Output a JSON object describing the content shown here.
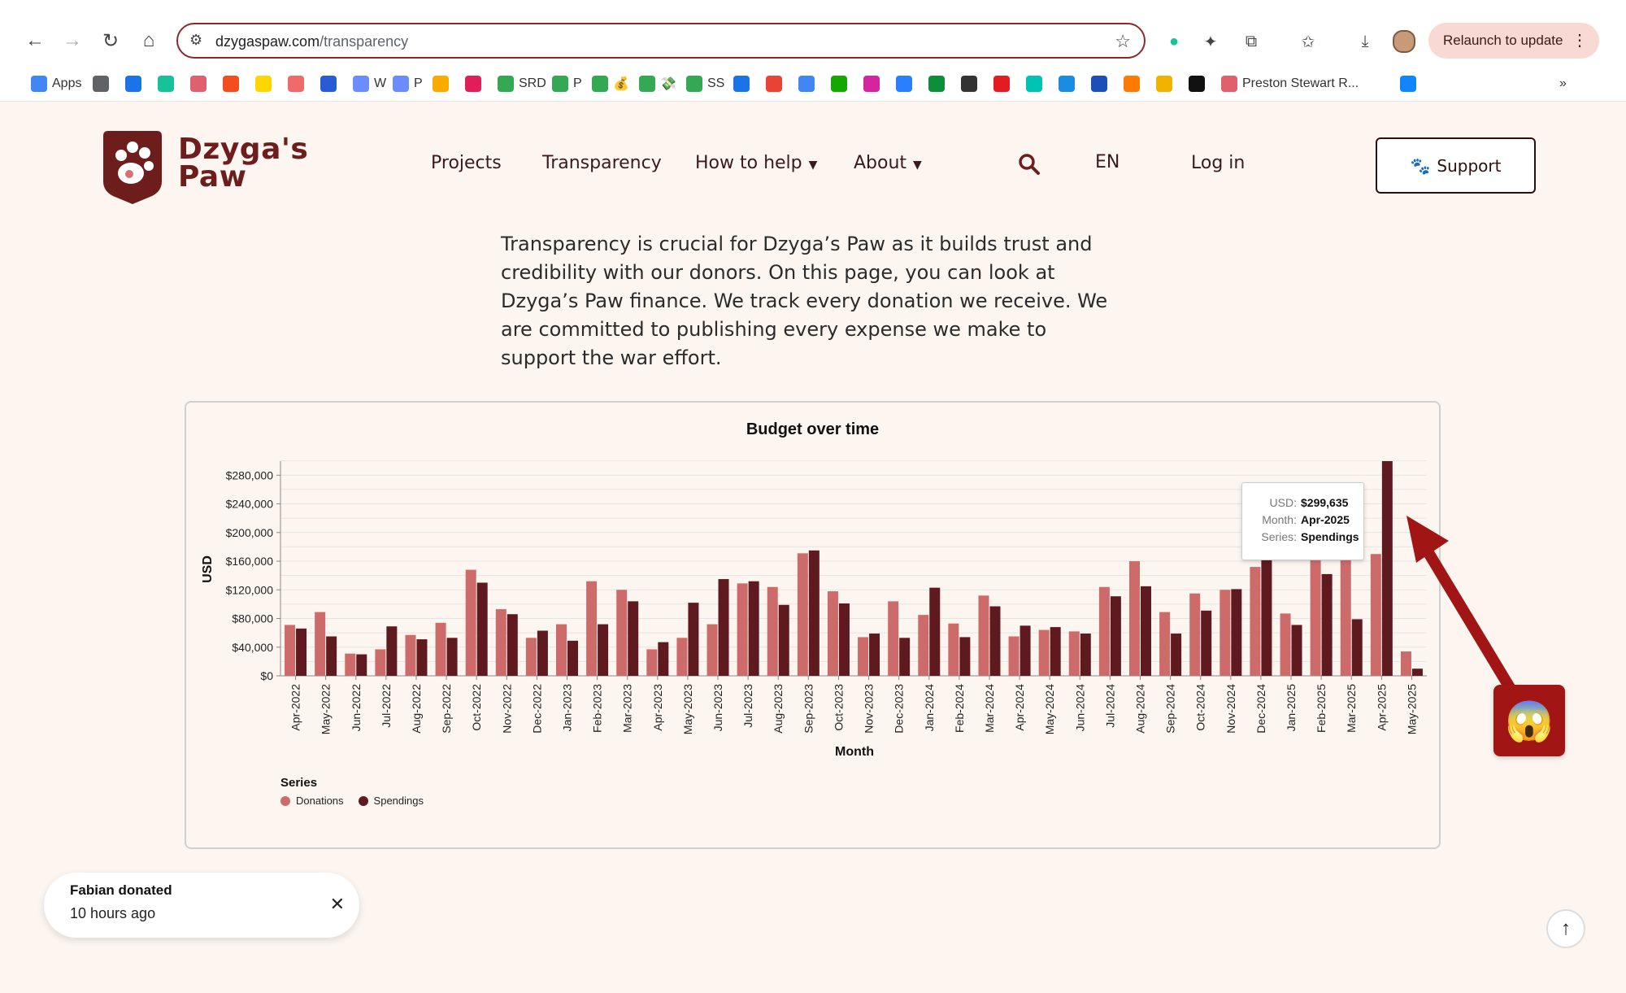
{
  "browser": {
    "url_host": "dzygaspaw.com",
    "url_path": "/transparency",
    "relaunch_label": "Relaunch to update",
    "bookmarks": [
      {
        "label": "Apps",
        "icon": "apps-grid-icon",
        "color": "#4285f4"
      },
      {
        "label": "",
        "icon": "grid-icon",
        "color": "#5f6368"
      },
      {
        "label": "",
        "icon": "calendar-icon",
        "color": "#1a73e8"
      },
      {
        "label": "",
        "icon": "grammarly-icon",
        "color": "#15c39a"
      },
      {
        "label": "",
        "icon": "paw-icon",
        "color": "#e0606e"
      },
      {
        "label": "",
        "icon": "figma-icon",
        "color": "#f24e1e"
      },
      {
        "label": "",
        "icon": "yellow-circle-icon",
        "color": "#ffd600"
      },
      {
        "label": "",
        "icon": "asana-icon",
        "color": "#f06a6a"
      },
      {
        "label": "",
        "icon": "blue-square-icon",
        "color": "#2a5bd7"
      },
      {
        "label": "W",
        "icon": "hand-icon",
        "color": "#6a8cff"
      },
      {
        "label": "P",
        "icon": "hand-icon",
        "color": "#6a8cff"
      },
      {
        "label": "",
        "icon": "analytics-icon",
        "color": "#f9ab00"
      },
      {
        "label": "",
        "icon": "slack-icon",
        "color": "#e01e5a"
      },
      {
        "label": "SRD",
        "icon": "drive-icon",
        "color": "#34a853"
      },
      {
        "label": "P",
        "icon": "drive-icon",
        "color": "#34a853"
      },
      {
        "label": "💰",
        "icon": "drive-icon",
        "color": "#34a853"
      },
      {
        "label": "💸",
        "icon": "drive-icon",
        "color": "#34a853"
      },
      {
        "label": "SS",
        "icon": "drive-icon",
        "color": "#34a853"
      },
      {
        "label": "",
        "icon": "calendar-icon",
        "color": "#1a73e8"
      },
      {
        "label": "",
        "icon": "gmail-icon",
        "color": "#ea4335"
      },
      {
        "label": "",
        "icon": "ads-icon",
        "color": "#4285f4"
      },
      {
        "label": "",
        "icon": "upwork-icon",
        "color": "#14a800"
      },
      {
        "label": "",
        "icon": "instagram-icon",
        "color": "#d6249f"
      },
      {
        "label": "",
        "icon": "puzzle-icon",
        "color": "#2a7fff"
      },
      {
        "label": "",
        "icon": "square-icon",
        "color": "#0d8f3a"
      },
      {
        "label": "",
        "icon": "globe-icon",
        "color": "#333333"
      },
      {
        "label": "",
        "icon": "red-icon",
        "color": "#e31b23"
      },
      {
        "label": "",
        "icon": "teal-icon",
        "color": "#00c4b3"
      },
      {
        "label": "",
        "icon": "hr-icon",
        "color": "#1b8ce3"
      },
      {
        "label": "",
        "icon": "ub-icon",
        "color": "#1c4fb8"
      },
      {
        "label": "",
        "icon": "multicolor-icon",
        "color": "#ff7a00"
      },
      {
        "label": "",
        "icon": "ring-icon",
        "color": "#f2b200"
      },
      {
        "label": "",
        "icon": "openai-icon",
        "color": "#111111"
      },
      {
        "label": "Preston Stewart R...",
        "icon": "paw-icon",
        "color": "#e0606e"
      },
      {
        "label": "",
        "icon": "butterfly-icon",
        "color": "#1185fe"
      }
    ]
  },
  "site": {
    "logo_line1": "Dzyga's",
    "logo_line2": "Paw",
    "nav": {
      "projects": "Projects",
      "transparency": "Transparency",
      "how_to_help": "How to help",
      "about": "About",
      "lang": "EN",
      "login": "Log in"
    },
    "support_label": "Support",
    "brand_color": "#6e1d1d"
  },
  "intro": "Transparency is crucial for Dzyga’s Paw as it builds trust and credibility with our donors. On this page, you can look at Dzyga’s Paw finance. We track every donation we receive. We are committed to publishing every expense we make to support the war effort.",
  "chart_data": {
    "type": "bar",
    "title": "Budget over time",
    "xlabel": "Month",
    "ylabel": "USD",
    "ylim": [
      0,
      299635
    ],
    "yticks": [
      0,
      40000,
      80000,
      120000,
      160000,
      200000,
      240000,
      280000
    ],
    "ytick_labels": [
      "$0",
      "$40,000",
      "$80,000",
      "$120,000",
      "$160,000",
      "$200,000",
      "$240,000",
      "$280,000"
    ],
    "categories": [
      "Apr-2022",
      "May-2022",
      "Jun-2022",
      "Jul-2022",
      "Aug-2022",
      "Sep-2022",
      "Oct-2022",
      "Nov-2022",
      "Dec-2022",
      "Jan-2023",
      "Feb-2023",
      "Mar-2023",
      "Apr-2023",
      "May-2023",
      "Jun-2023",
      "Jul-2023",
      "Aug-2023",
      "Sep-2023",
      "Oct-2023",
      "Nov-2023",
      "Dec-2023",
      "Jan-2024",
      "Feb-2024",
      "Mar-2024",
      "Apr-2024",
      "May-2024",
      "Jun-2024",
      "Jul-2024",
      "Aug-2024",
      "Sep-2024",
      "Oct-2024",
      "Nov-2024",
      "Dec-2024",
      "Jan-2025",
      "Feb-2025",
      "Mar-2025",
      "Apr-2025",
      "May-2025"
    ],
    "series": [
      {
        "name": "Donations",
        "color": "#cd6b6b",
        "values": [
          71000,
          89000,
          31000,
          37000,
          57000,
          74000,
          148000,
          93000,
          53000,
          72000,
          132000,
          120000,
          37000,
          53000,
          72000,
          129000,
          124000,
          171000,
          118000,
          54000,
          104000,
          85000,
          73000,
          112000,
          55000,
          64000,
          62000,
          124000,
          160000,
          89000,
          115000,
          120000,
          152000,
          87000,
          165000,
          168000,
          170000,
          34000
        ]
      },
      {
        "name": "Spendings",
        "color": "#5e1a1f",
        "values": [
          66000,
          55000,
          30000,
          69000,
          51000,
          53000,
          130000,
          86000,
          63000,
          49000,
          72000,
          104000,
          47000,
          102000,
          135000,
          132000,
          99000,
          175000,
          101000,
          59000,
          53000,
          123000,
          54000,
          97000,
          70000,
          68000,
          59000,
          111000,
          125000,
          59000,
          91000,
          121000,
          165000,
          71000,
          142000,
          79000,
          299635,
          10000
        ]
      }
    ],
    "legend_title": "Series",
    "legend_placement": "bottom-left",
    "grid": true,
    "tooltip": {
      "usd_key": "USD:",
      "usd_val": "$299,635",
      "month_key": "Month:",
      "month_val": "Apr-2025",
      "series_key": "Series:",
      "series_val": "Spendings"
    }
  },
  "annotation": {
    "emoji": "😱",
    "arrow_color": "#a11515"
  },
  "toast": {
    "title": "Fabian donated",
    "time": "10 hours ago"
  }
}
